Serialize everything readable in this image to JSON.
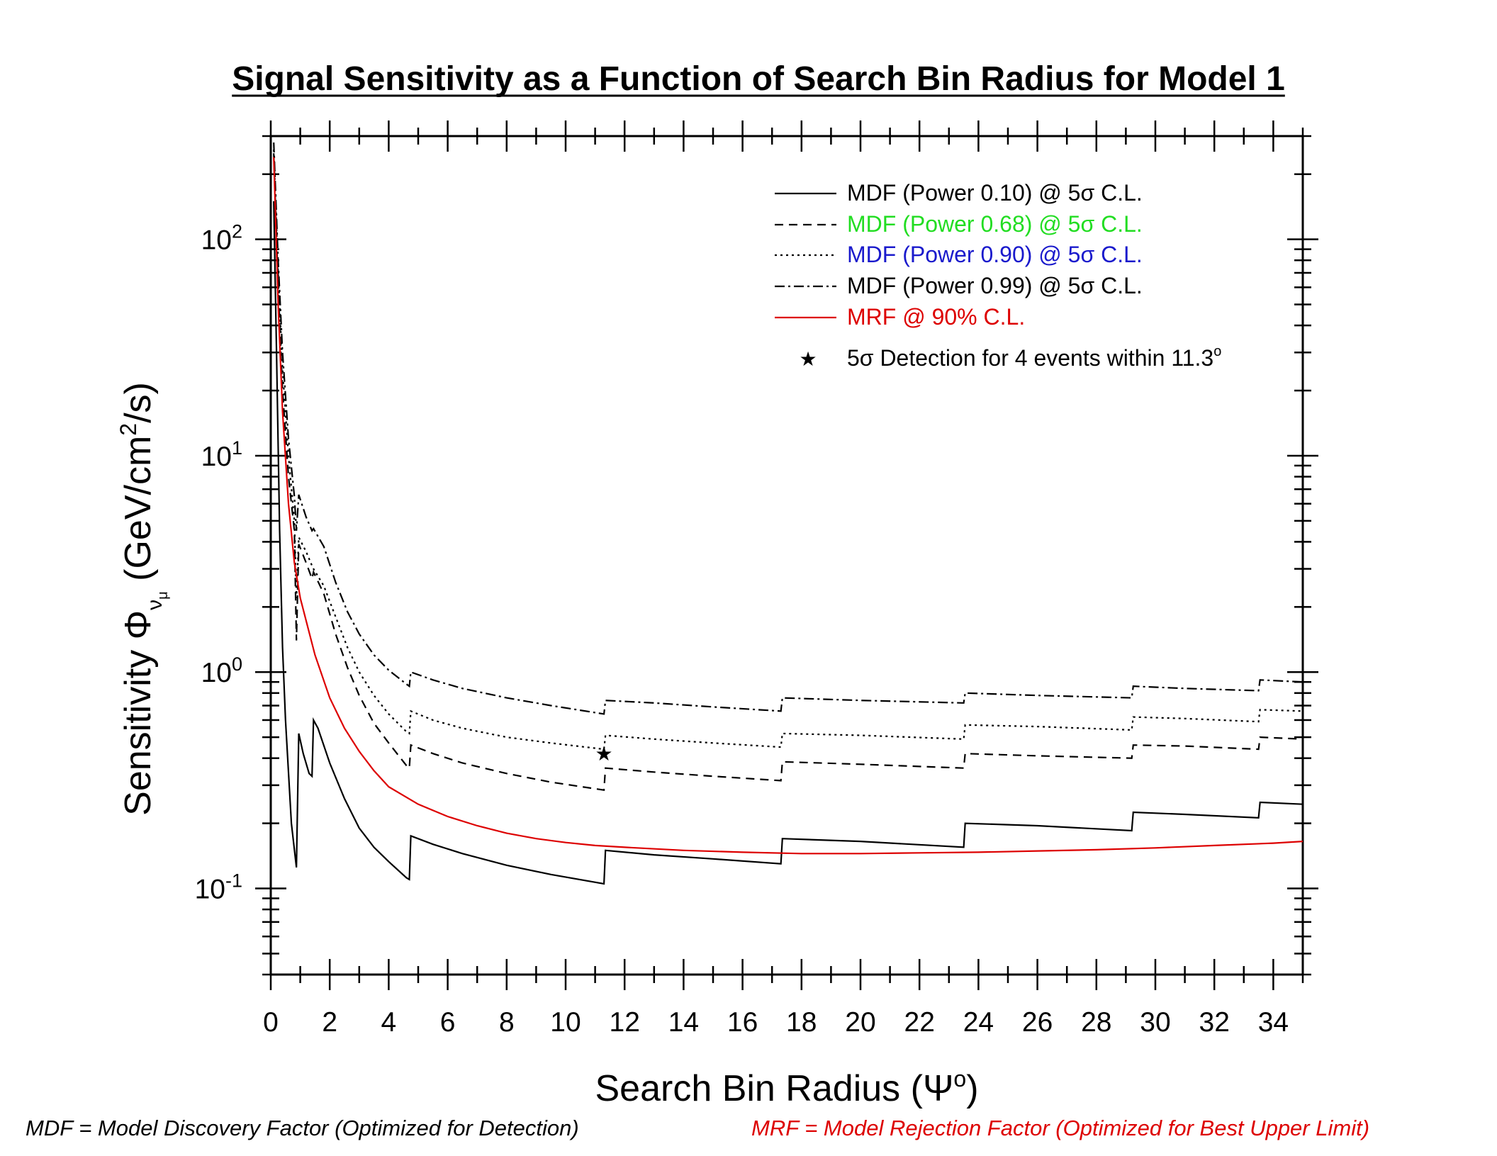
{
  "chart_data": {
    "type": "line",
    "title": "Signal Sensitivity as a Function of Search Bin Radius for Model 1",
    "xlabel_prefix": "Search Bin Radius (",
    "xlabel_symbol": "Ψ",
    "xlabel_sup": "o",
    "xlabel_suffix": ")",
    "ylabel_prefix": "Sensitivity ",
    "ylabel_symbol": "Φ",
    "ylabel_sub": "ν",
    "ylabel_subsub": "μ",
    "ylabel_unit_a": "  (GeV/cm",
    "ylabel_unit_sup": "2",
    "ylabel_unit_b": "/s)",
    "xlim": [
      0,
      35
    ],
    "ylim": [
      0.04,
      300
    ],
    "yscale": "log",
    "x_ticks": [
      "0",
      "2",
      "4",
      "6",
      "8",
      "10",
      "12",
      "14",
      "16",
      "18",
      "20",
      "22",
      "24",
      "26",
      "28",
      "30",
      "32",
      "34"
    ],
    "y_ticks": [
      {
        "base": "10",
        "exp": "-1",
        "value": 0.1
      },
      {
        "base": "10",
        "exp": "0",
        "value": 1
      },
      {
        "base": "10",
        "exp": "1",
        "value": 10
      },
      {
        "base": "10",
        "exp": "2",
        "value": 100
      }
    ],
    "legend_position": "top-right",
    "series": [
      {
        "name": "MDF (Power 0.10) @ 5σ C.L.",
        "color": "#000000",
        "dash": "none",
        "points": [
          [
            0.1,
            150
          ],
          [
            0.2,
            28
          ],
          [
            0.3,
            4.5
          ],
          [
            0.4,
            1.3
          ],
          [
            0.5,
            0.6
          ],
          [
            0.7,
            0.2
          ],
          [
            0.87,
            0.125
          ],
          [
            0.95,
            0.52
          ],
          [
            1.1,
            0.42
          ],
          [
            1.3,
            0.34
          ],
          [
            1.4,
            0.33
          ],
          [
            1.45,
            0.6
          ],
          [
            1.6,
            0.55
          ],
          [
            2.0,
            0.38
          ],
          [
            2.5,
            0.26
          ],
          [
            3.0,
            0.19
          ],
          [
            3.5,
            0.155
          ],
          [
            4.0,
            0.133
          ],
          [
            4.6,
            0.112
          ],
          [
            4.7,
            0.11
          ],
          [
            4.75,
            0.175
          ],
          [
            5.5,
            0.16
          ],
          [
            6.5,
            0.145
          ],
          [
            8,
            0.128
          ],
          [
            9.5,
            0.116
          ],
          [
            11.3,
            0.105
          ],
          [
            11.35,
            0.15
          ],
          [
            13,
            0.143
          ],
          [
            15,
            0.137
          ],
          [
            17.3,
            0.13
          ],
          [
            17.35,
            0.17
          ],
          [
            20,
            0.165
          ],
          [
            23.5,
            0.155
          ],
          [
            23.55,
            0.2
          ],
          [
            26,
            0.195
          ],
          [
            29.2,
            0.185
          ],
          [
            29.25,
            0.225
          ],
          [
            31,
            0.22
          ],
          [
            33.5,
            0.212
          ],
          [
            33.55,
            0.25
          ],
          [
            35,
            0.245
          ]
        ]
      },
      {
        "name": "MDF (Power 0.68) @ 5σ C.L.",
        "color": "#000000",
        "dash": "12,8",
        "points": [
          [
            0.1,
            250
          ],
          [
            0.25,
            60
          ],
          [
            0.4,
            20
          ],
          [
            0.6,
            8
          ],
          [
            0.8,
            4.5
          ],
          [
            0.87,
            1.4
          ],
          [
            0.95,
            3.9
          ],
          [
            1.2,
            3.2
          ],
          [
            1.4,
            2.7
          ],
          [
            1.45,
            2.9
          ],
          [
            1.8,
            2.3
          ],
          [
            2.2,
            1.5
          ],
          [
            2.6,
            1.05
          ],
          [
            3.0,
            0.78
          ],
          [
            3.5,
            0.58
          ],
          [
            4.0,
            0.47
          ],
          [
            4.6,
            0.37
          ],
          [
            4.7,
            0.36
          ],
          [
            4.75,
            0.46
          ],
          [
            5.5,
            0.42
          ],
          [
            6.5,
            0.38
          ],
          [
            8,
            0.34
          ],
          [
            9.5,
            0.31
          ],
          [
            11.3,
            0.285
          ],
          [
            11.35,
            0.36
          ],
          [
            13,
            0.345
          ],
          [
            15,
            0.33
          ],
          [
            17.3,
            0.315
          ],
          [
            17.35,
            0.385
          ],
          [
            20,
            0.375
          ],
          [
            23.5,
            0.36
          ],
          [
            23.55,
            0.42
          ],
          [
            26,
            0.41
          ],
          [
            29.2,
            0.4
          ],
          [
            29.25,
            0.46
          ],
          [
            31,
            0.455
          ],
          [
            33.5,
            0.44
          ],
          [
            33.55,
            0.5
          ],
          [
            35,
            0.49
          ]
        ]
      },
      {
        "name": "MDF (Power 0.90) @ 5σ C.L.",
        "color": "#000000",
        "dash": "3,5",
        "points": [
          [
            0.1,
            260
          ],
          [
            0.25,
            70
          ],
          [
            0.4,
            25
          ],
          [
            0.6,
            10
          ],
          [
            0.8,
            5
          ],
          [
            0.87,
            2.2
          ],
          [
            0.95,
            4.2
          ],
          [
            1.2,
            3.6
          ],
          [
            1.4,
            3.1
          ],
          [
            1.45,
            3.0
          ],
          [
            1.8,
            2.5
          ],
          [
            2.2,
            1.8
          ],
          [
            2.6,
            1.3
          ],
          [
            3.0,
            1.0
          ],
          [
            3.5,
            0.78
          ],
          [
            4.0,
            0.64
          ],
          [
            4.6,
            0.53
          ],
          [
            4.7,
            0.52
          ],
          [
            4.75,
            0.66
          ],
          [
            5.5,
            0.6
          ],
          [
            6.5,
            0.55
          ],
          [
            8,
            0.5
          ],
          [
            9.5,
            0.47
          ],
          [
            11.3,
            0.44
          ],
          [
            11.35,
            0.51
          ],
          [
            13,
            0.49
          ],
          [
            15,
            0.47
          ],
          [
            17.3,
            0.45
          ],
          [
            17.35,
            0.52
          ],
          [
            20,
            0.51
          ],
          [
            23.5,
            0.49
          ],
          [
            23.55,
            0.57
          ],
          [
            26,
            0.56
          ],
          [
            29.2,
            0.54
          ],
          [
            29.25,
            0.62
          ],
          [
            31,
            0.61
          ],
          [
            33.5,
            0.59
          ],
          [
            33.55,
            0.67
          ],
          [
            35,
            0.66
          ]
        ]
      },
      {
        "name": "MDF (Power 0.99) @ 5σ C.L.",
        "color": "#000000",
        "dash": "14,5,3,5",
        "points": [
          [
            0.1,
            280
          ],
          [
            0.25,
            80
          ],
          [
            0.4,
            30
          ],
          [
            0.6,
            12
          ],
          [
            0.8,
            6.5
          ],
          [
            0.87,
            4.5
          ],
          [
            0.95,
            6.6
          ],
          [
            1.2,
            5.2
          ],
          [
            1.4,
            4.5
          ],
          [
            1.45,
            4.6
          ],
          [
            1.8,
            3.8
          ],
          [
            2.2,
            2.6
          ],
          [
            2.6,
            1.9
          ],
          [
            3.0,
            1.5
          ],
          [
            3.5,
            1.2
          ],
          [
            4.0,
            1.02
          ],
          [
            4.6,
            0.88
          ],
          [
            4.7,
            0.86
          ],
          [
            4.75,
            1.0
          ],
          [
            5.5,
            0.92
          ],
          [
            6.5,
            0.84
          ],
          [
            8,
            0.76
          ],
          [
            9.5,
            0.7
          ],
          [
            11.3,
            0.64
          ],
          [
            11.35,
            0.74
          ],
          [
            13,
            0.72
          ],
          [
            15,
            0.69
          ],
          [
            17.3,
            0.66
          ],
          [
            17.35,
            0.76
          ],
          [
            20,
            0.74
          ],
          [
            23.5,
            0.72
          ],
          [
            23.55,
            0.8
          ],
          [
            26,
            0.78
          ],
          [
            29.2,
            0.76
          ],
          [
            29.25,
            0.86
          ],
          [
            31,
            0.84
          ],
          [
            33.5,
            0.82
          ],
          [
            33.55,
            0.92
          ],
          [
            35,
            0.9
          ]
        ]
      },
      {
        "name": "MRF @ 90% C.L.",
        "color": "#dd0000",
        "dash": "none",
        "points": [
          [
            0.1,
            240
          ],
          [
            0.25,
            50
          ],
          [
            0.4,
            16
          ],
          [
            0.6,
            6
          ],
          [
            0.8,
            3.2
          ],
          [
            1.0,
            2.2
          ],
          [
            1.5,
            1.2
          ],
          [
            2.0,
            0.76
          ],
          [
            2.5,
            0.55
          ],
          [
            3.0,
            0.43
          ],
          [
            3.5,
            0.35
          ],
          [
            4.0,
            0.295
          ],
          [
            5,
            0.245
          ],
          [
            6,
            0.215
          ],
          [
            7,
            0.195
          ],
          [
            8,
            0.18
          ],
          [
            9,
            0.17
          ],
          [
            10,
            0.163
          ],
          [
            11,
            0.158
          ],
          [
            12,
            0.155
          ],
          [
            14,
            0.15
          ],
          [
            16,
            0.147
          ],
          [
            18,
            0.145
          ],
          [
            20,
            0.145
          ],
          [
            22,
            0.146
          ],
          [
            24,
            0.147
          ],
          [
            26,
            0.149
          ],
          [
            28,
            0.151
          ],
          [
            30,
            0.154
          ],
          [
            32,
            0.158
          ],
          [
            34,
            0.162
          ],
          [
            35,
            0.165
          ]
        ]
      }
    ],
    "marker": {
      "name": "5σ Detection for 4 events within 11.3",
      "sup": "o",
      "x": 11.3,
      "y": 0.42
    },
    "footnotes": {
      "left": "MDF = Model Discovery Factor (Optimized for Detection)",
      "left_color": "#000000",
      "right": "MRF = Model Rejection Factor (Optimized for Best Upper Limit)",
      "right_color": "#dd0000"
    },
    "legend_text_colors": [
      "#000000",
      "#22dd22",
      "#1a1acc",
      "#000000",
      "#dd0000"
    ]
  }
}
